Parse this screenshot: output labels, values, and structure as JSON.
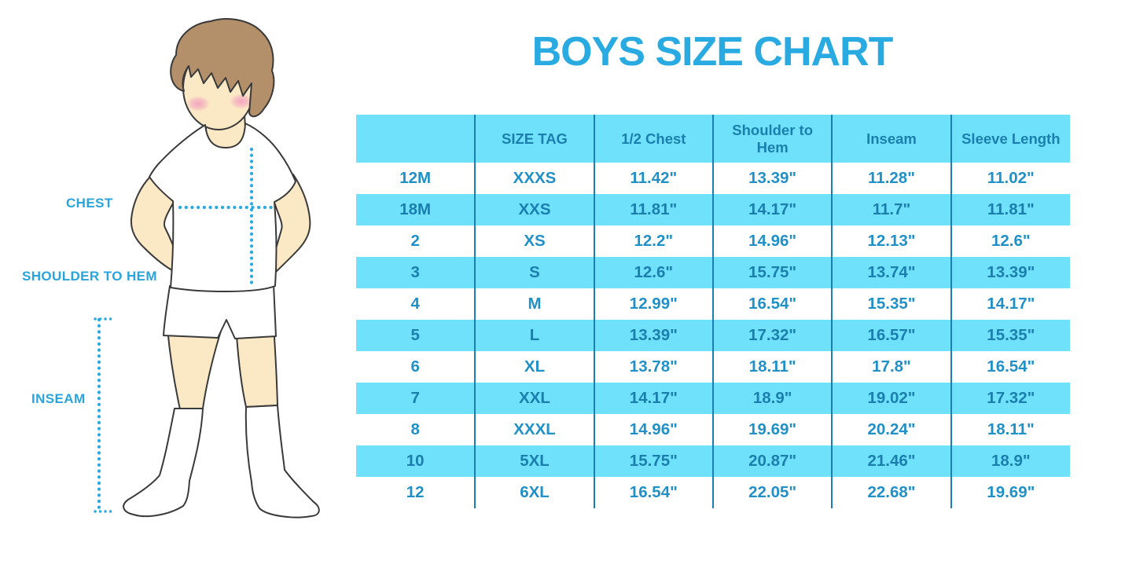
{
  "title": "BOYS SIZE CHART",
  "colors": {
    "accent_blue": "#29ABE2",
    "table_cyan": "#6FE1FA",
    "table_text_blue": "#2090C6",
    "header_text_blue": "#1B7FAE",
    "divider_blue": "#1A7FB5",
    "dotted_line_blue": "#2BAAE2",
    "skin": "#FBE9C5",
    "hair": "#B3906A",
    "blush": "#F2A0BE"
  },
  "illustration": {
    "figure": "boy-with-hands-on-hips",
    "labels": {
      "chest": "CHEST",
      "shoulder_to_hem": "SHOULDER TO HEM",
      "inseam": "INSEAM"
    }
  },
  "chart_data": {
    "type": "table",
    "title": "BOYS SIZE CHART",
    "columns": [
      "",
      "SIZE TAG",
      "1/2 Chest",
      "Shoulder to Hem",
      "Inseam",
      "Sleeve Length"
    ],
    "rows": [
      [
        "12M",
        "XXXS",
        "11.42\"",
        "13.39\"",
        "11.28\"",
        "11.02\""
      ],
      [
        "18M",
        "XXS",
        "11.81\"",
        "14.17\"",
        "11.7\"",
        "11.81\""
      ],
      [
        "2",
        "XS",
        "12.2\"",
        "14.96\"",
        "12.13\"",
        "12.6\""
      ],
      [
        "3",
        "S",
        "12.6\"",
        "15.75\"",
        "13.74\"",
        "13.39\""
      ],
      [
        "4",
        "M",
        "12.99\"",
        "16.54\"",
        "15.35\"",
        "14.17\""
      ],
      [
        "5",
        "L",
        "13.39\"",
        "17.32\"",
        "16.57\"",
        "15.35\""
      ],
      [
        "6",
        "XL",
        "13.78\"",
        "18.11\"",
        "17.8\"",
        "16.54\""
      ],
      [
        "7",
        "XXL",
        "14.17\"",
        "18.9\"",
        "19.02\"",
        "17.32\""
      ],
      [
        "8",
        "XXXL",
        "14.96\"",
        "19.69\"",
        "20.24\"",
        "18.11\""
      ],
      [
        "10",
        "5XL",
        "15.75\"",
        "20.87\"",
        "21.46\"",
        "18.9\""
      ],
      [
        "12",
        "6XL",
        "16.54\"",
        "22.05\"",
        "22.68\"",
        "19.69\""
      ]
    ],
    "layout_hints": {
      "striping": "alternating white and cyan rows",
      "grid": "vertical dividers only"
    }
  }
}
